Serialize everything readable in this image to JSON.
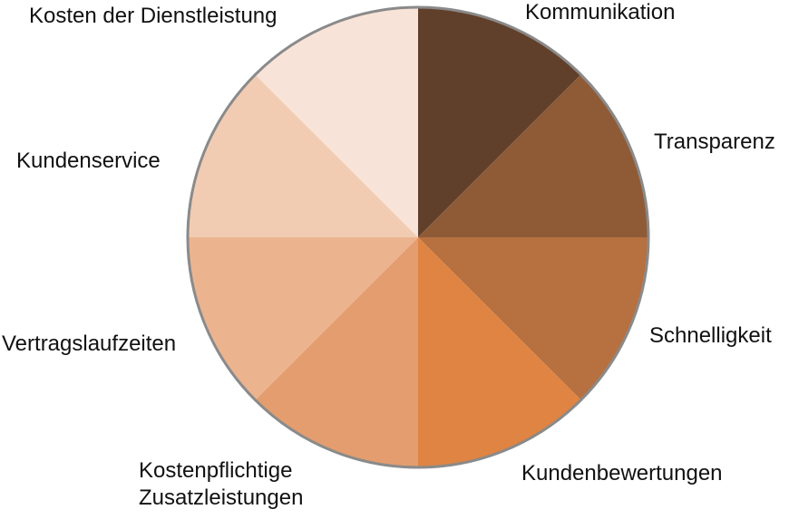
{
  "chart_data": {
    "type": "pie",
    "title": "",
    "categories": [
      "Kommunikation",
      "Transparenz",
      "Schnelligkeit",
      "Kundenbewertungen",
      "Kostenpflichtige Zusatzleistungen",
      "Vertragslaufzeiten",
      "Kundenservice",
      "Kosten der Dienstleistung"
    ],
    "values": [
      1,
      1,
      1,
      1,
      1,
      1,
      1,
      1
    ],
    "label_lines": [
      [
        "Kommunikation"
      ],
      [
        "Transparenz"
      ],
      [
        "Schnelligkeit"
      ],
      [
        "Kundenbewertungen"
      ],
      [
        "Kostenpflichtige",
        "Zusatzleistungen"
      ],
      [
        "Vertragslaufzeiten"
      ],
      [
        "Kundenservice"
      ],
      [
        "Kosten der Dienstleistung"
      ]
    ],
    "colors": [
      "#61402b",
      "#8f5b37",
      "#b7703f",
      "#df8443",
      "#e49d6e",
      "#ebb48f",
      "#f2ccb2",
      "#f8e3d8"
    ],
    "outline_color": "#8a8a8a",
    "legend": "none",
    "grid": false
  }
}
